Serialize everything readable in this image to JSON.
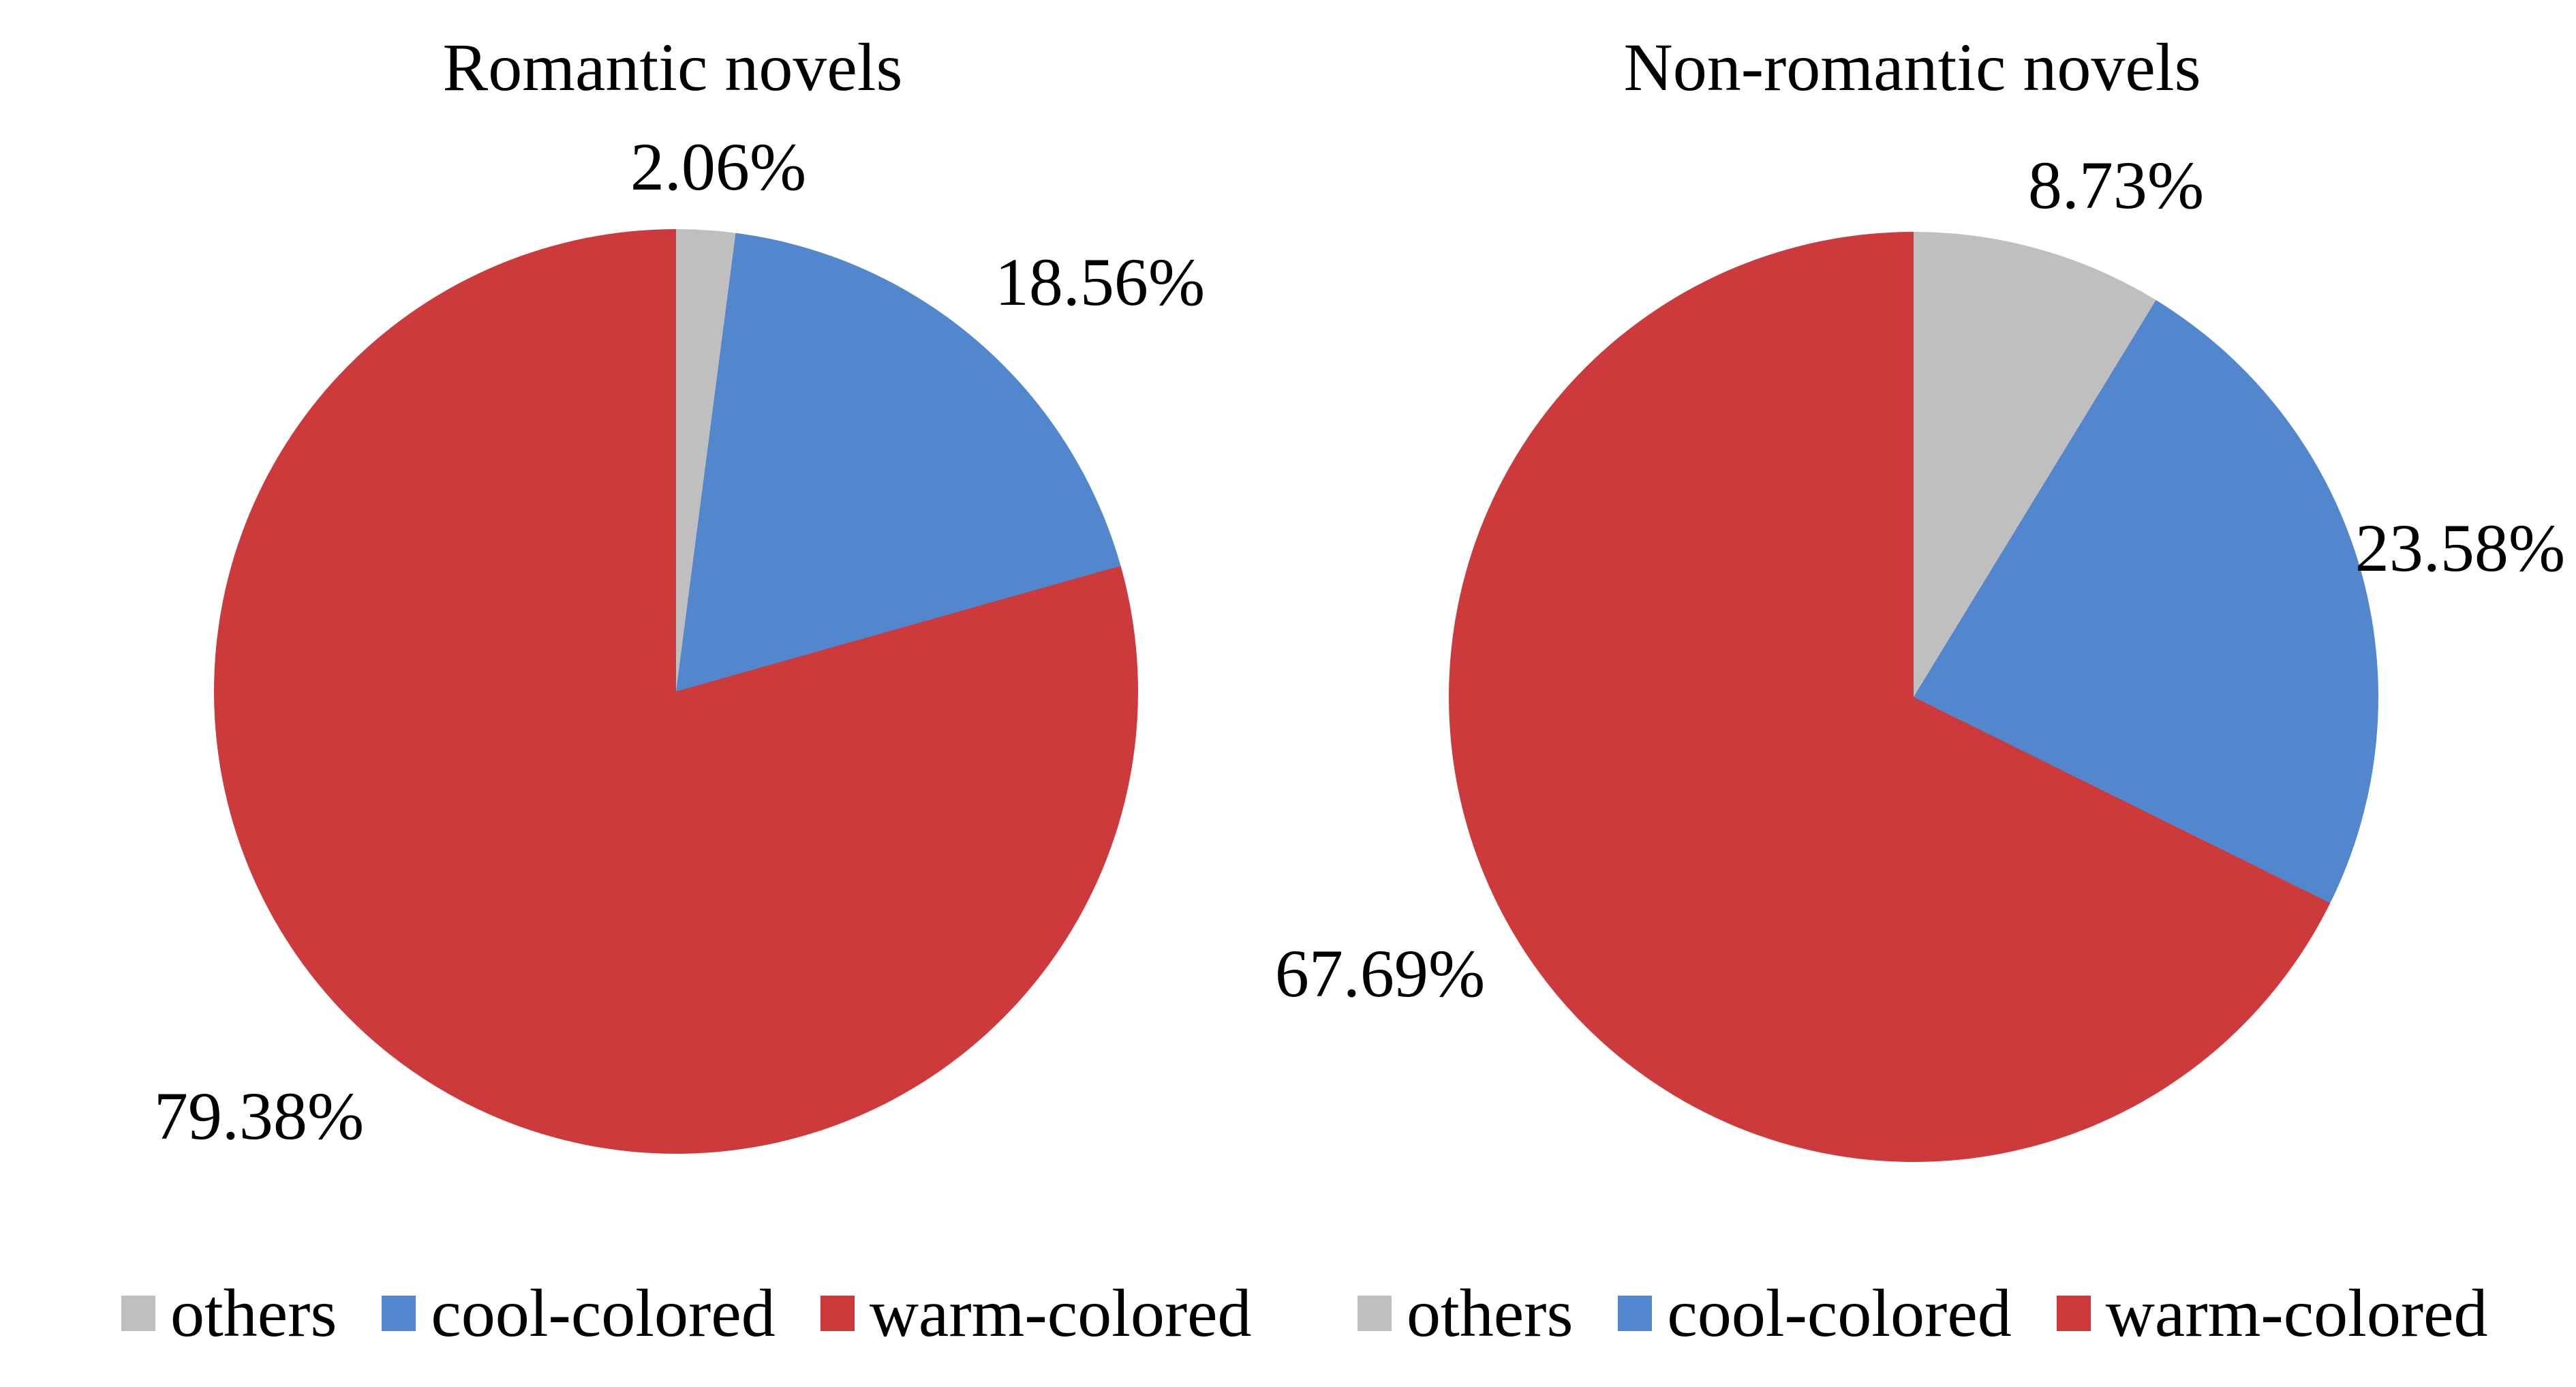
{
  "page": {
    "background": "#FFFFFF",
    "text_color": "#000000"
  },
  "palette": {
    "others": "#BFBFBF",
    "cool_colored": "#5287CD",
    "warm_colored": "#CC3A3C"
  },
  "chart_data": [
    {
      "type": "pie",
      "title": "Romantic novels",
      "categories": [
        "others",
        "cool-colored",
        "warm-colored"
      ],
      "values": [
        2.06,
        18.56,
        79.38
      ],
      "labels": [
        "2.06%",
        "18.56%",
        "79.38%"
      ],
      "colors": [
        "#BFBFBF",
        "#5287CD",
        "#CC3A3C"
      ],
      "start_angle_deg": 0,
      "direction": "clockwise",
      "legend_position": "bottom"
    },
    {
      "type": "pie",
      "title": "Non-romantic novels",
      "categories": [
        "others",
        "cool-colored",
        "warm-colored"
      ],
      "values": [
        8.73,
        23.58,
        67.69
      ],
      "labels": [
        "8.73%",
        "23.58%",
        "67.69%"
      ],
      "colors": [
        "#BFBFBF",
        "#5287CD",
        "#CC3A3C"
      ],
      "start_angle_deg": 0,
      "direction": "clockwise",
      "legend_position": "bottom"
    }
  ]
}
